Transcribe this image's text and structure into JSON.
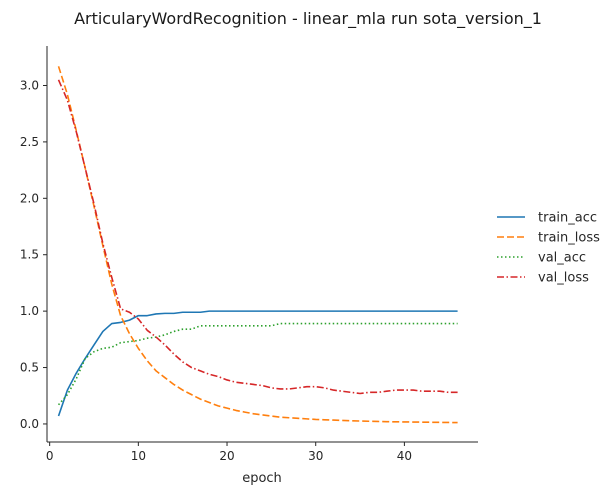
{
  "chart_data": {
    "type": "line",
    "title": "ArticularyWordRecognition - linear_mla run sota_version_1",
    "xlabel": "epoch",
    "ylabel": "",
    "xlim": [
      -0.3,
      48.3
    ],
    "ylim": [
      -0.16,
      3.35
    ],
    "x_ticks": [
      0,
      10,
      20,
      30,
      40
    ],
    "y_ticks": [
      0.0,
      0.5,
      1.0,
      1.5,
      2.0,
      2.5,
      3.0
    ],
    "grid": false,
    "legend_position": "right",
    "x": [
      1,
      2,
      3,
      4,
      5,
      6,
      7,
      8,
      9,
      10,
      11,
      12,
      13,
      14,
      15,
      16,
      17,
      18,
      19,
      20,
      21,
      22,
      23,
      24,
      25,
      26,
      27,
      28,
      29,
      30,
      31,
      32,
      33,
      34,
      35,
      36,
      37,
      38,
      39,
      40,
      41,
      42,
      43,
      44,
      45,
      46
    ],
    "series": [
      {
        "name": "train_acc",
        "color": "#1f77b4",
        "dash": "solid",
        "values": [
          0.07,
          0.3,
          0.45,
          0.58,
          0.7,
          0.82,
          0.89,
          0.9,
          0.92,
          0.96,
          0.96,
          0.975,
          0.98,
          0.98,
          0.99,
          0.99,
          0.99,
          1.0,
          1.0,
          1.0,
          1.0,
          1.0,
          1.0,
          1.0,
          1.0,
          1.0,
          1.0,
          1.0,
          1.0,
          1.0,
          1.0,
          1.0,
          1.0,
          1.0,
          1.0,
          1.0,
          1.0,
          1.0,
          1.0,
          1.0,
          1.0,
          1.0,
          1.0,
          1.0,
          1.0,
          1.0
        ]
      },
      {
        "name": "train_loss",
        "color": "#ff7f0e",
        "dash": "dashed",
        "values": [
          3.17,
          2.92,
          2.6,
          2.27,
          1.93,
          1.58,
          1.24,
          0.96,
          0.8,
          0.67,
          0.56,
          0.47,
          0.41,
          0.35,
          0.3,
          0.26,
          0.22,
          0.19,
          0.16,
          0.14,
          0.12,
          0.105,
          0.09,
          0.08,
          0.07,
          0.06,
          0.055,
          0.05,
          0.045,
          0.04,
          0.037,
          0.034,
          0.031,
          0.028,
          0.026,
          0.024,
          0.022,
          0.02,
          0.019,
          0.018,
          0.017,
          0.016,
          0.015,
          0.014,
          0.013,
          0.012
        ]
      },
      {
        "name": "val_acc",
        "color": "#2ca02c",
        "dash": "dotted",
        "values": [
          0.17,
          0.26,
          0.4,
          0.58,
          0.64,
          0.67,
          0.68,
          0.72,
          0.73,
          0.74,
          0.76,
          0.77,
          0.79,
          0.82,
          0.84,
          0.84,
          0.87,
          0.87,
          0.87,
          0.87,
          0.87,
          0.87,
          0.87,
          0.87,
          0.87,
          0.89,
          0.89,
          0.89,
          0.89,
          0.89,
          0.89,
          0.89,
          0.89,
          0.89,
          0.89,
          0.89,
          0.89,
          0.89,
          0.89,
          0.89,
          0.89,
          0.89,
          0.89,
          0.89,
          0.89,
          0.89
        ]
      },
      {
        "name": "val_loss",
        "color": "#d62728",
        "dash": "dashdot",
        "values": [
          3.05,
          2.87,
          2.59,
          2.27,
          1.95,
          1.6,
          1.3,
          1.02,
          0.99,
          0.93,
          0.83,
          0.77,
          0.7,
          0.62,
          0.55,
          0.5,
          0.47,
          0.44,
          0.42,
          0.39,
          0.37,
          0.36,
          0.35,
          0.34,
          0.32,
          0.31,
          0.31,
          0.32,
          0.33,
          0.33,
          0.32,
          0.3,
          0.29,
          0.28,
          0.27,
          0.28,
          0.28,
          0.29,
          0.3,
          0.3,
          0.3,
          0.29,
          0.29,
          0.29,
          0.28,
          0.28
        ]
      }
    ]
  }
}
